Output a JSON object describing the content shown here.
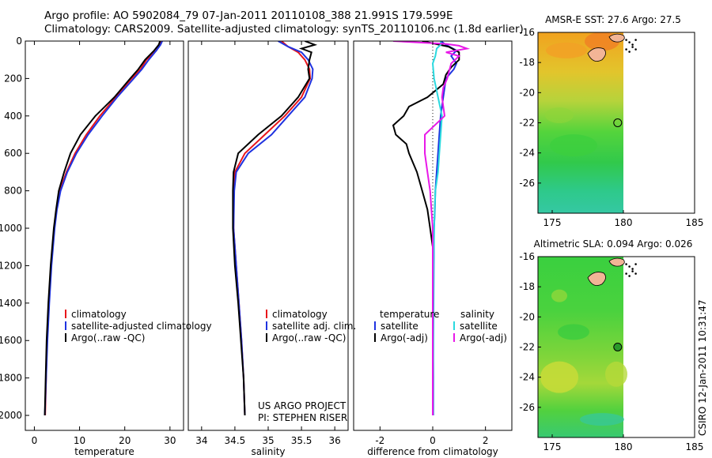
{
  "header": {
    "line1": "Argo profile: AO 5902084_79 07-Jan-2011 20110108_388 21.991S 179.599E",
    "line2": "Climatology: CARS2009. Satellite-adjusted climatology: synTS_20110106.nc (1.8d earlier)"
  },
  "credit": "CSIRO 12-Jan-2011 10:31:47",
  "colors": {
    "red": "#e8151b",
    "blue": "#1f33e0",
    "black": "#000000",
    "cyan": "#2ad9df",
    "magenta": "#e819e8"
  },
  "chart_data": [
    {
      "type": "line",
      "xlabel": "temperature",
      "xlim": [
        -2,
        33
      ],
      "ylim": [
        2080,
        0
      ],
      "xticks": [
        0,
        10,
        20,
        30
      ],
      "yticks": [
        0,
        200,
        400,
        600,
        800,
        1000,
        1200,
        1400,
        1600,
        1800,
        2000
      ],
      "legend": [
        "climatology",
        "satellite-adjusted climatology",
        "Argo(..raw -QC)"
      ],
      "series": [
        {
          "name": "climatology",
          "color": "red",
          "y": [
            0,
            20,
            50,
            100,
            150,
            200,
            300,
            400,
            500,
            600,
            700,
            800,
            900,
            1000,
            1200,
            1400,
            1600,
            1800,
            2000
          ],
          "x": [
            28.0,
            27.6,
            27.0,
            24.8,
            23.5,
            21.5,
            18.0,
            14.5,
            11.5,
            9.0,
            7.1,
            5.6,
            4.9,
            4.4,
            3.7,
            3.2,
            2.8,
            2.6,
            2.4
          ]
        },
        {
          "name": "satellite-adjusted climatology",
          "color": "blue",
          "y": [
            0,
            20,
            50,
            100,
            150,
            200,
            300,
            400,
            500,
            600,
            700,
            800,
            900,
            1000,
            1200,
            1400,
            1600,
            1800,
            2000
          ],
          "x": [
            28.3,
            27.9,
            27.0,
            25.3,
            23.8,
            22.0,
            18.3,
            15.0,
            11.9,
            9.3,
            7.3,
            5.8,
            5.0,
            4.5,
            3.8,
            3.3,
            2.9,
            2.6,
            2.3
          ]
        },
        {
          "name": "Argo(..raw -QC)",
          "color": "black",
          "y": [
            0,
            20,
            50,
            100,
            150,
            200,
            300,
            400,
            500,
            600,
            700,
            800,
            900,
            1000,
            1200,
            1400,
            1600,
            1800,
            2000
          ],
          "x": [
            27.8,
            27.5,
            26.5,
            24.5,
            23.0,
            21.2,
            17.7,
            13.5,
            10.2,
            8.0,
            6.6,
            5.4,
            4.8,
            4.3,
            3.6,
            3.1,
            2.7,
            2.5,
            2.3
          ]
        }
      ]
    },
    {
      "type": "line",
      "xlabel": "salinity",
      "xlim": [
        33.8,
        36.2
      ],
      "ylim": [
        2080,
        0
      ],
      "xticks": [
        34,
        34.5,
        35,
        35.5,
        36
      ],
      "yticks": [],
      "legend": [
        "climatology",
        "satellite adj. clim.",
        "Argo(..raw -QC)"
      ],
      "annotation": [
        "US ARGO PROJECT",
        "PI: STEPHEN RISER"
      ],
      "series": [
        {
          "name": "climatology",
          "color": "red",
          "y": [
            0,
            30,
            60,
            100,
            150,
            200,
            300,
            400,
            500,
            600,
            700,
            800,
            1000,
            1200,
            1400,
            1600,
            1800,
            2000
          ],
          "x": [
            35.2,
            35.3,
            35.45,
            35.55,
            35.62,
            35.63,
            35.5,
            35.25,
            34.95,
            34.65,
            34.5,
            34.48,
            34.48,
            34.52,
            34.56,
            34.6,
            34.63,
            34.65
          ]
        },
        {
          "name": "satellite adj. clim.",
          "color": "blue",
          "y": [
            0,
            30,
            60,
            100,
            150,
            200,
            300,
            400,
            500,
            600,
            700,
            800,
            1000,
            1200,
            1400,
            1600,
            1800,
            2000
          ],
          "x": [
            35.15,
            35.3,
            35.5,
            35.6,
            35.67,
            35.66,
            35.55,
            35.3,
            35.05,
            34.7,
            34.52,
            34.49,
            34.48,
            34.52,
            34.56,
            34.6,
            34.63,
            34.65
          ]
        },
        {
          "name": "Argo(..raw -QC)",
          "color": "black",
          "y": [
            0,
            20,
            40,
            60,
            100,
            150,
            200,
            300,
            400,
            500,
            600,
            700,
            800,
            1000,
            1200,
            1400,
            1600,
            1800,
            2000
          ],
          "x": [
            35.55,
            35.7,
            35.5,
            35.65,
            35.62,
            35.6,
            35.62,
            35.45,
            35.2,
            34.85,
            34.55,
            34.48,
            34.47,
            34.47,
            34.5,
            34.55,
            34.59,
            34.63,
            34.65
          ]
        }
      ]
    },
    {
      "type": "line",
      "xlabel": "difference from climatology",
      "xlim": [
        -3,
        3
      ],
      "ylim": [
        2080,
        0
      ],
      "xticks": [
        -2,
        0,
        2
      ],
      "yticks": [],
      "legend": {
        "temperature": [
          "satellite",
          "Argo(-adj)"
        ],
        "salinity": [
          "satellite",
          "Argo(-adj)"
        ]
      },
      "series": [
        {
          "name": "temperature satellite",
          "color": "blue",
          "y": [
            0,
            20,
            50,
            80,
            120,
            150,
            200,
            300,
            400,
            500,
            600,
            700,
            800,
            900,
            1000,
            1200,
            1400,
            1600,
            1800,
            2000
          ],
          "x": [
            0.3,
            0.5,
            0.9,
            0.7,
            0.9,
            0.8,
            0.5,
            0.4,
            0.3,
            0.25,
            0.2,
            0.15,
            0.1,
            0.08,
            0.05,
            0.04,
            0.03,
            0.02,
            0.02,
            0.02
          ]
        },
        {
          "name": "temperature Argo(-adj)",
          "color": "black",
          "y": [
            0,
            30,
            60,
            100,
            140,
            180,
            230,
            300,
            350,
            400,
            450,
            500,
            550,
            600,
            700,
            800,
            900,
            1000,
            1100,
            1200,
            1400,
            1600,
            1800,
            2000
          ],
          "x": [
            -0.4,
            0.6,
            1.0,
            1.0,
            0.7,
            0.5,
            0.4,
            -0.2,
            -0.9,
            -1.1,
            -1.5,
            -1.4,
            -1.0,
            -0.9,
            -0.6,
            -0.4,
            -0.2,
            -0.1,
            0.0,
            0.0,
            0.0,
            0.0,
            0.0,
            0.0
          ]
        },
        {
          "name": "salinity satellite",
          "color": "cyan",
          "y": [
            0,
            20,
            40,
            80,
            120,
            200,
            300,
            400,
            500,
            600,
            700,
            800,
            1000,
            1200,
            1400,
            1600,
            1800,
            2000
          ],
          "x": [
            0.3,
            0.3,
            0.15,
            0.1,
            0.0,
            0.05,
            0.2,
            0.35,
            0.3,
            0.25,
            0.2,
            0.1,
            0.05,
            0.03,
            0.02,
            0.02,
            0.01,
            0.01
          ]
        },
        {
          "name": "salinity Argo(-adj)",
          "color": "magenta",
          "y": [
            0,
            15,
            25,
            40,
            60,
            80,
            120,
            200,
            250,
            300,
            400,
            500,
            600,
            700,
            800,
            900,
            1000,
            1200,
            1400,
            1600,
            1800,
            2000
          ],
          "x": [
            -1.5,
            0.5,
            1.0,
            1.3,
            0.5,
            1.0,
            0.7,
            0.55,
            0.4,
            0.35,
            0.45,
            -0.3,
            -0.3,
            -0.2,
            -0.1,
            -0.05,
            0.0,
            0.0,
            0.0,
            0.0,
            0.0,
            0.0
          ]
        }
      ]
    },
    {
      "type": "heatmap",
      "title": "AMSR-E SST: 27.6 Argo: 27.5",
      "xlim": [
        174,
        185
      ],
      "ylim": [
        -28,
        -16
      ],
      "xticks": [
        175,
        180,
        185
      ],
      "yticks": [
        -16,
        -18,
        -20,
        -22,
        -24,
        -26
      ],
      "marker": {
        "lon": 179.6,
        "lat": -22.0,
        "filled": false
      }
    },
    {
      "type": "heatmap",
      "title": "Altimetric SLA: 0.094 Argo: 0.026",
      "xlim": [
        174,
        185
      ],
      "ylim": [
        -28,
        -16
      ],
      "xticks": [
        175,
        180,
        185
      ],
      "yticks": [
        -16,
        -18,
        -20,
        -22,
        -24,
        -26
      ],
      "marker": {
        "lon": 179.6,
        "lat": -22.0,
        "filled": true
      }
    }
  ]
}
